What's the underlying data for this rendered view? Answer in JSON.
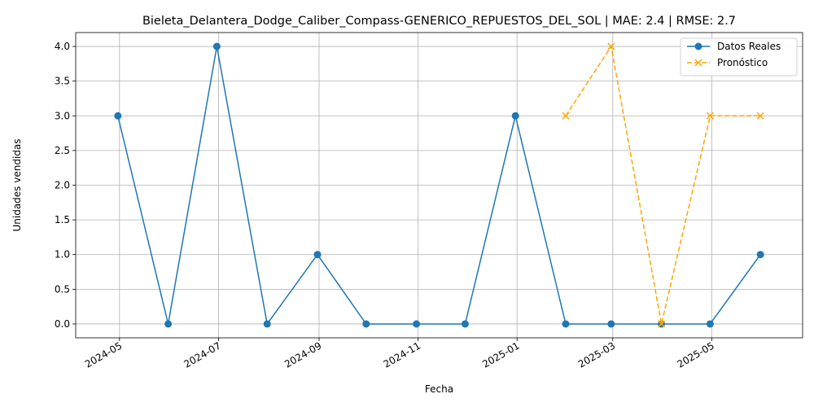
{
  "chart_data": {
    "type": "line",
    "title": "Bieleta_Delantera_Dodge_Caliber_Compass-GENERICO_REPUESTOS_DEL_SOL | MAE: 2.4 | RMSE: 2.7",
    "xlabel": "Fecha",
    "ylabel": "Unidades vendidas",
    "x_ticks": [
      "2024-05",
      "2024-07",
      "2024-09",
      "2024-11",
      "2025-01",
      "2025-03",
      "2025-05"
    ],
    "y_ticks": [
      "0.0",
      "0.5",
      "1.0",
      "1.5",
      "2.0",
      "2.5",
      "3.0",
      "3.5",
      "4.0"
    ],
    "ylim": [
      -0.2,
      4.2
    ],
    "xlim": [
      "2024-04-04",
      "2025-06-26"
    ],
    "grid": true,
    "legend_position": "top-right",
    "series": [
      {
        "name": "Datos Reales",
        "color": "#1f77b4",
        "style": "solid",
        "marker": "circle",
        "x": [
          "2024-04-30",
          "2024-05-31",
          "2024-06-30",
          "2024-07-31",
          "2024-08-31",
          "2024-09-30",
          "2024-10-31",
          "2024-11-30",
          "2024-12-31",
          "2025-01-31",
          "2025-02-28",
          "2025-03-31",
          "2025-04-30",
          "2025-05-31"
        ],
        "values": [
          3,
          0,
          4,
          0,
          1,
          0,
          0,
          0,
          3,
          0,
          0,
          0,
          0,
          1
        ]
      },
      {
        "name": "Pronóstico",
        "color": "#ffa500",
        "style": "dashed",
        "marker": "x",
        "x": [
          "2025-01-31",
          "2025-02-28",
          "2025-03-31",
          "2025-04-30",
          "2025-05-31"
        ],
        "values": [
          3,
          4,
          0,
          3,
          3
        ]
      }
    ]
  }
}
